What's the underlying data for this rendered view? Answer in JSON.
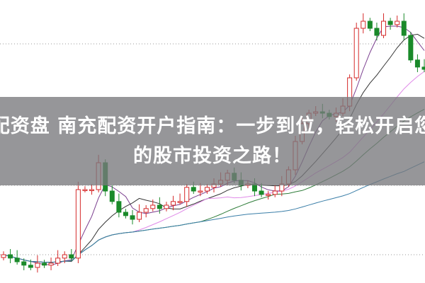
{
  "headline": {
    "line1": "配资盘 南充配资开户指南：一步到位，轻松开启您",
    "line2": "的股市投资之路！"
  },
  "chart_data": {
    "type": "candlestick",
    "title": "",
    "xlabel": "",
    "ylabel": "",
    "grid": "dotted horizontal lines",
    "ylim": [
      10,
      20
    ],
    "close": [
      11.0,
      10.88,
      10.75,
      10.63,
      10.55,
      10.7,
      10.63,
      10.7,
      10.88,
      11.0,
      10.88,
      13.3,
      13.3,
      13.3,
      14.25,
      13.25,
      12.88,
      12.5,
      12.38,
      12.25,
      12.5,
      12.63,
      12.75,
      12.63,
      12.75,
      12.88,
      12.88,
      13.38,
      13.25,
      13.25,
      13.38,
      13.5,
      13.63,
      13.88,
      13.63,
      13.45,
      13.5,
      13.25,
      13.13,
      13.13,
      13.25,
      13.5,
      14.0,
      15.0,
      15.63,
      16.0,
      16.05,
      16.0,
      15.88,
      16.0,
      16.25,
      17.25,
      19.0,
      19.25,
      19.0,
      18.75,
      19.25,
      19.13,
      19.25,
      18.75,
      17.88,
      17.63,
      17.55
    ],
    "moving_averages": [
      {
        "period": 5,
        "color": "#7b3f8f"
      },
      {
        "period": 10,
        "color": "#333333"
      },
      {
        "period": 20,
        "color": "#e08ae8"
      },
      {
        "period": 30,
        "color": "#2f7d3a"
      },
      {
        "period": 60,
        "color": "#3a7ea8"
      }
    ],
    "colors": {
      "up": "#d62a2a",
      "down": "#1a8a2a"
    }
  }
}
